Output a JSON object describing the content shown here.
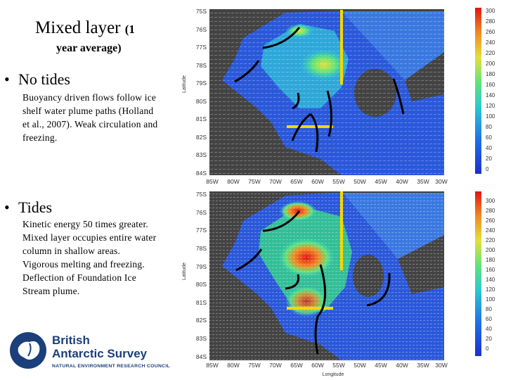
{
  "slide": {
    "title_main": "Mixed layer",
    "title_paren": "(1",
    "subtitle": "year average)"
  },
  "sections": {
    "no_tides": {
      "bullet": "•",
      "heading": "No tides",
      "lines": [
        "Buoyancy driven flows follow ice",
        "shelf water plume paths (Holland",
        "et al., 2007). Weak circulation and",
        "freezing."
      ]
    },
    "tides": {
      "bullet": "•",
      "heading": "Tides",
      "lines": [
        "Kinetic energy 50 times greater.",
        "Mixed layer occupies entire water",
        "column in shallow areas.",
        "Vigorous melting and freezing.",
        "Deflection of Foundation Ice",
        "Stream plume."
      ]
    }
  },
  "maps": {
    "y_axis_label": "Latitude",
    "x_axis_label": "Longitude",
    "lat_ticks": [
      "75S",
      "76S",
      "77S",
      "78S",
      "79S",
      "80S",
      "81S",
      "82S",
      "83S",
      "84S"
    ],
    "lon_ticks": [
      "85W",
      "80W",
      "75W",
      "70W",
      "65W",
      "60W",
      "55W",
      "50W",
      "45W",
      "40W",
      "35W",
      "30W"
    ],
    "colorbar_ticks": [
      "300",
      "280",
      "260",
      "240",
      "220",
      "200",
      "180",
      "160",
      "140",
      "120",
      "100",
      "80",
      "60",
      "40",
      "20",
      "0"
    ]
  },
  "logo": {
    "name_line1": "British",
    "name_line2": "Antarctic Survey",
    "org": "NATURAL ENVIRONMENT RESEARCH COUNCIL"
  },
  "colors": {
    "map_background": "#434343",
    "low": "#1c2fd0",
    "mid": "#29c9d0",
    "high": "#e21414",
    "marker_yellow": "#f5d800",
    "logo_blue": "#1b3f7a"
  }
}
